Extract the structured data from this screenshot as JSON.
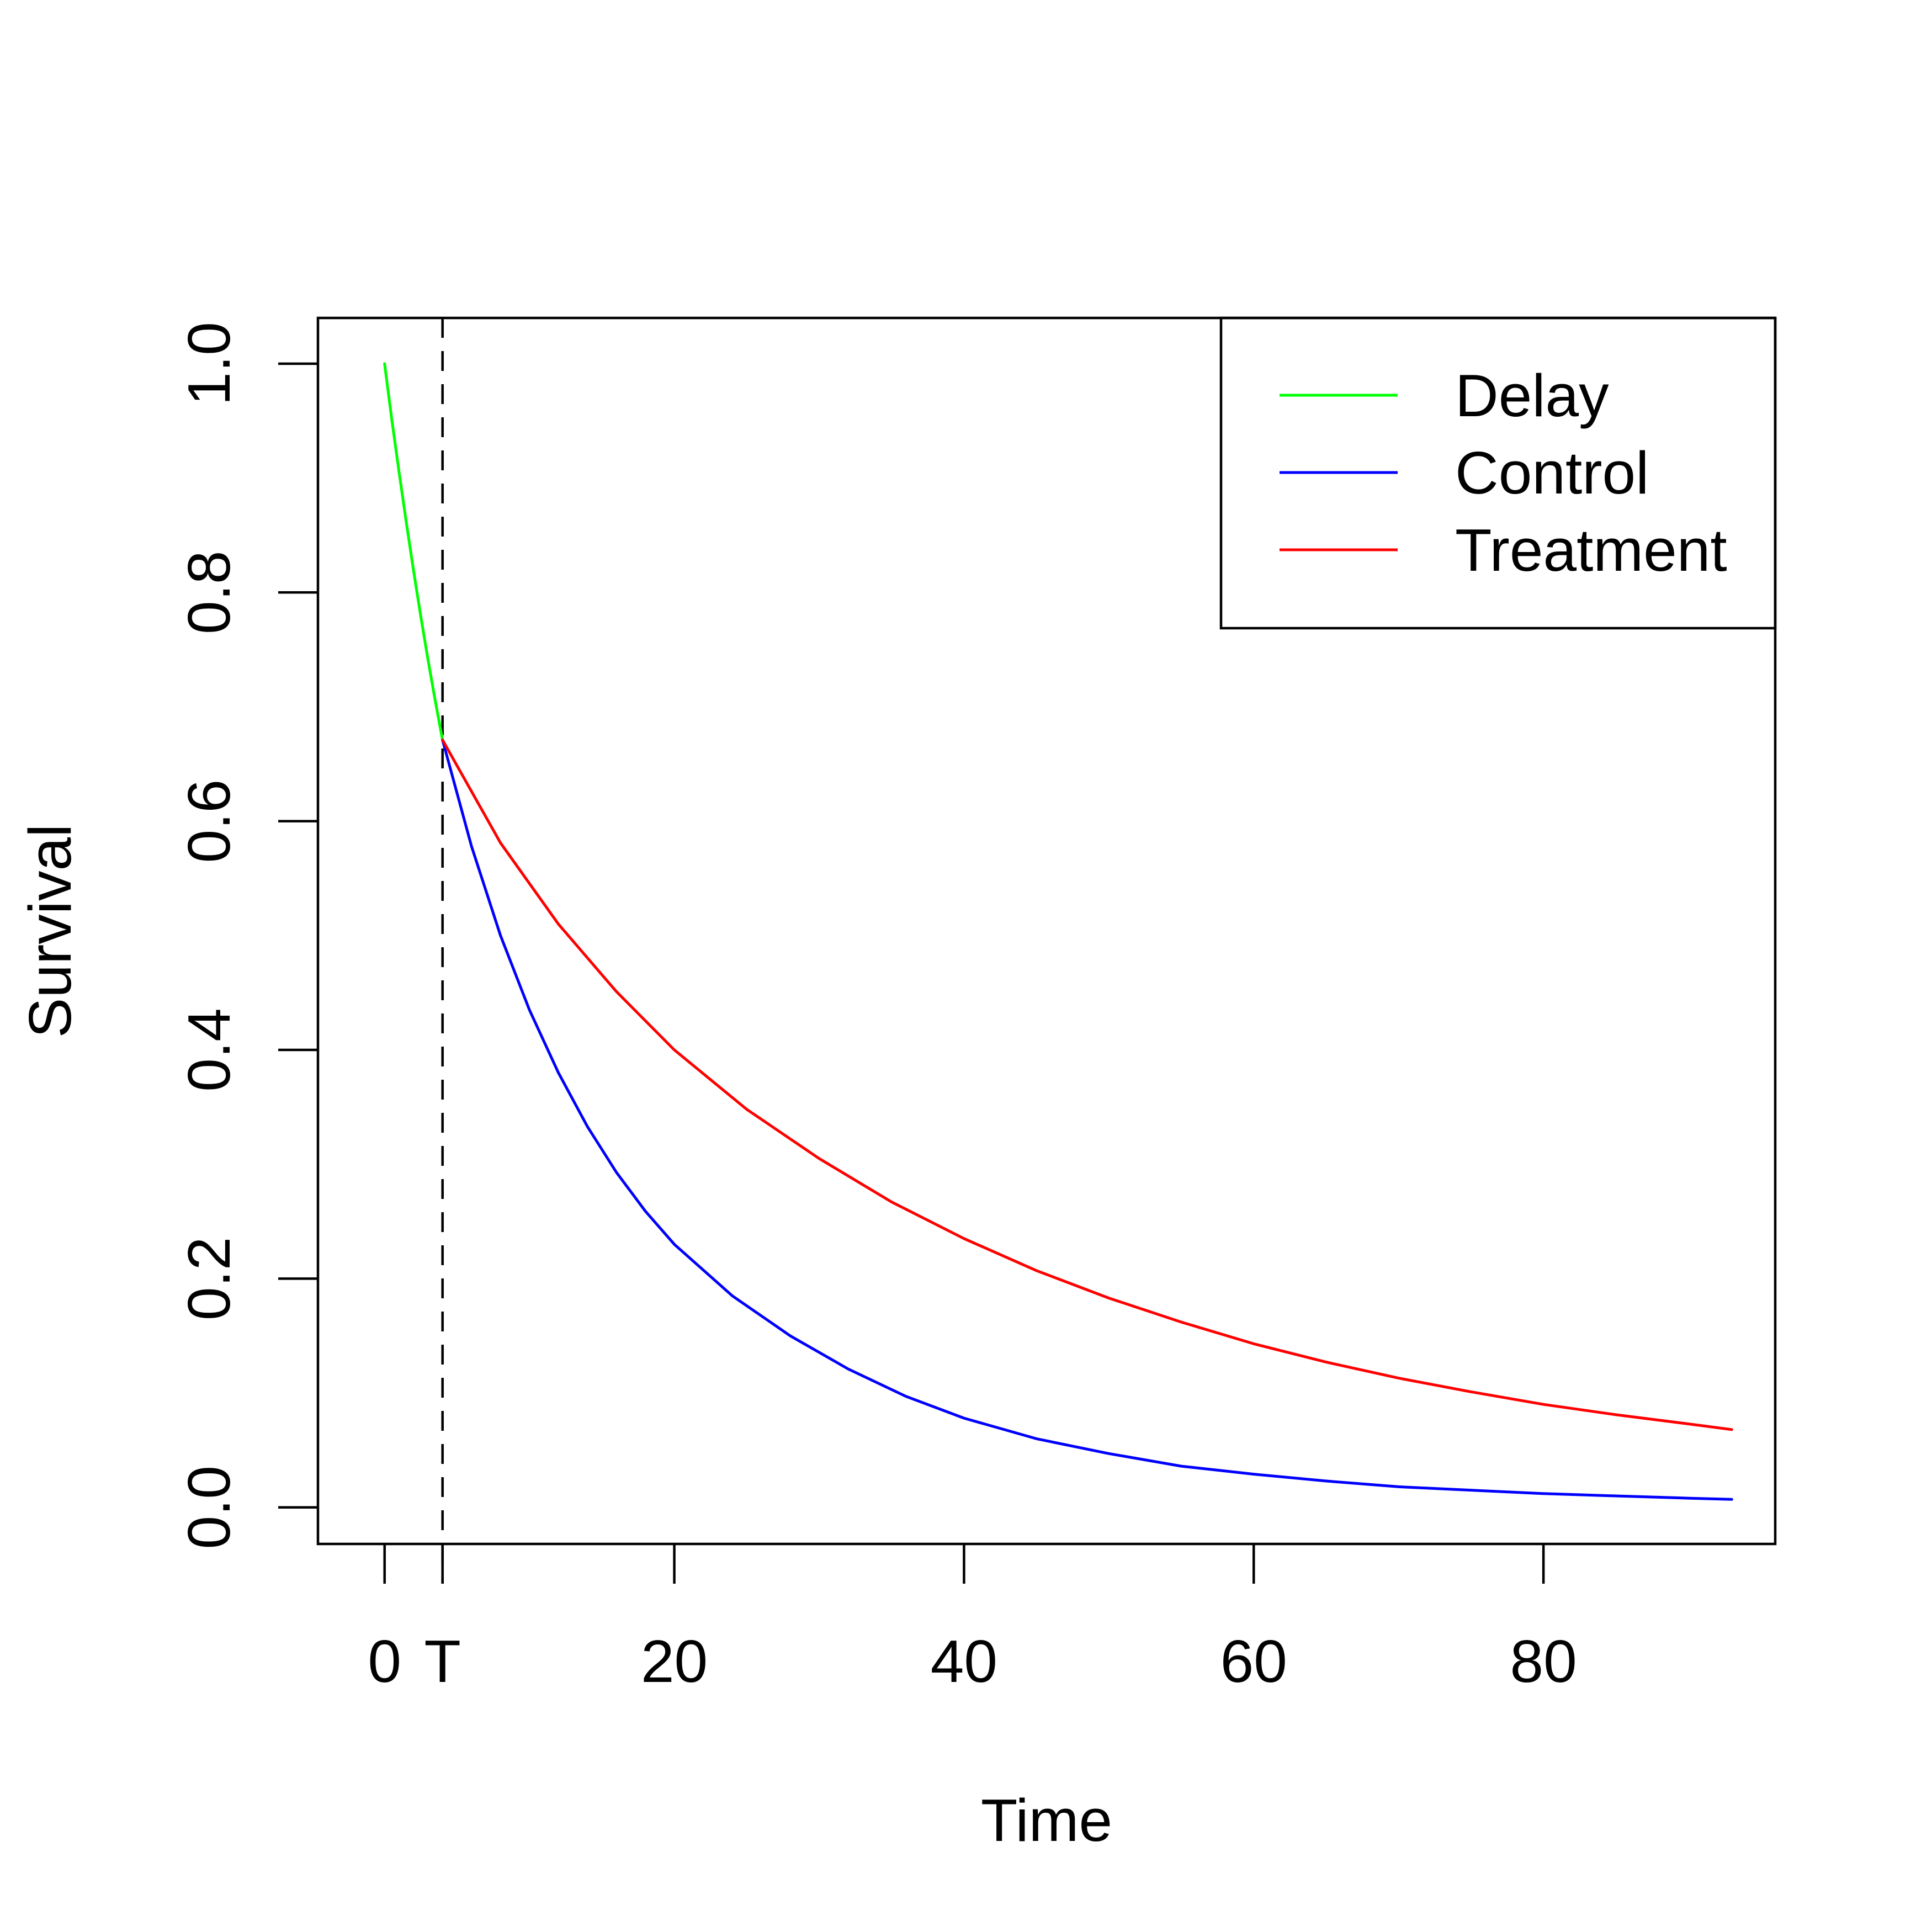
{
  "chart_data": {
    "type": "line",
    "title": "",
    "xlabel": "Time",
    "ylabel": "Survival",
    "xlim": [
      -4.6,
      96
    ],
    "ylim": [
      -0.032,
      1.04
    ],
    "x_ticks": [
      {
        "value": 0,
        "label": "0"
      },
      {
        "value": 4,
        "label": "T"
      },
      {
        "value": 20,
        "label": "20"
      },
      {
        "value": 40,
        "label": "40"
      },
      {
        "value": 60,
        "label": "60"
      },
      {
        "value": 80,
        "label": "80"
      }
    ],
    "y_ticks": [
      {
        "value": 0.0,
        "label": "0.0"
      },
      {
        "value": 0.2,
        "label": "0.2"
      },
      {
        "value": 0.4,
        "label": "0.4"
      },
      {
        "value": 0.6,
        "label": "0.6"
      },
      {
        "value": 0.8,
        "label": "0.8"
      },
      {
        "value": 1.0,
        "label": "1.0"
      }
    ],
    "reference_line": {
      "x": 4,
      "style": "dashed",
      "color": "#000000"
    },
    "legend_position": "top-right",
    "grid": false,
    "series": [
      {
        "name": "Delay",
        "color": "#00ff00",
        "x": [
          0,
          0.5,
          1,
          1.5,
          2,
          2.5,
          3,
          3.5,
          4
        ],
        "y": [
          1.0,
          0.951,
          0.905,
          0.861,
          0.819,
          0.779,
          0.741,
          0.705,
          0.671
        ]
      },
      {
        "name": "Control",
        "color": "#0000ff",
        "x": [
          4,
          6,
          8,
          10,
          12,
          14,
          16,
          18,
          20,
          24,
          28,
          32,
          36,
          40,
          45,
          50,
          55,
          60,
          65,
          70,
          75,
          80,
          85,
          90,
          93
        ],
        "y": [
          0.671,
          0.578,
          0.5,
          0.435,
          0.38,
          0.333,
          0.293,
          0.259,
          0.23,
          0.185,
          0.15,
          0.121,
          0.097,
          0.078,
          0.06,
          0.047,
          0.036,
          0.029,
          0.023,
          0.018,
          0.015,
          0.012,
          0.01,
          0.008,
          0.007
        ]
      },
      {
        "name": "Treatment",
        "color": "#ff0000",
        "x": [
          4,
          8,
          12,
          16,
          20,
          25,
          30,
          35,
          40,
          45,
          50,
          55,
          60,
          65,
          70,
          75,
          80,
          85,
          90,
          93
        ],
        "y": [
          0.671,
          0.581,
          0.51,
          0.451,
          0.4,
          0.348,
          0.305,
          0.267,
          0.235,
          0.207,
          0.183,
          0.162,
          0.143,
          0.127,
          0.113,
          0.101,
          0.09,
          0.081,
          0.073,
          0.068
        ]
      }
    ]
  }
}
